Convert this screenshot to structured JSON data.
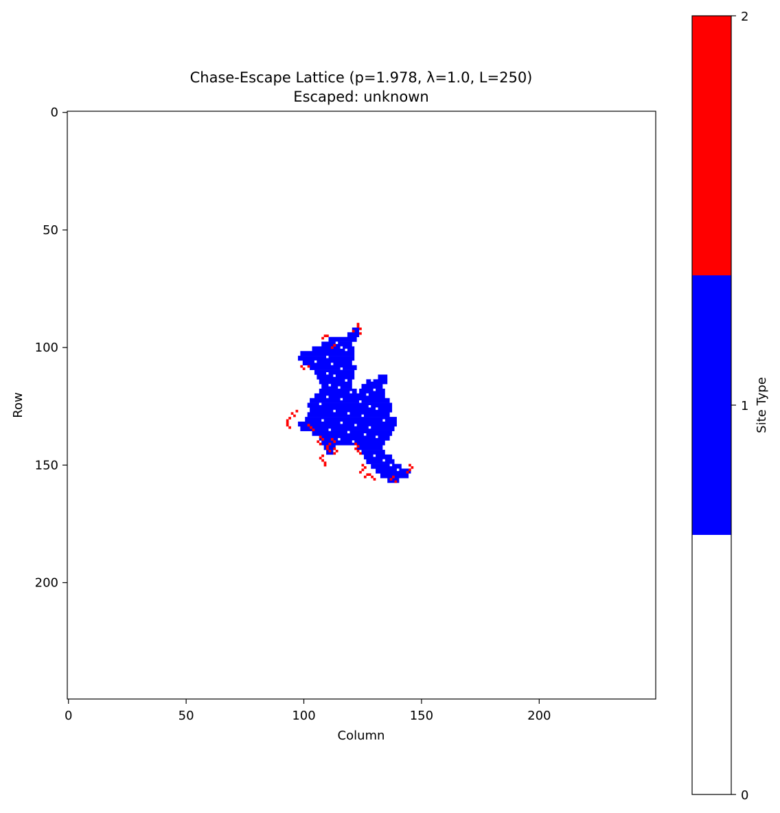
{
  "chart_data": {
    "type": "heatmap",
    "title": "Chase-Escape Lattice (p=1.978, λ=1.0, L=250)",
    "subtitle": "Escaped: unknown",
    "xlabel": "Column",
    "ylabel": "Row",
    "xlim": [
      0,
      250
    ],
    "ylim": [
      250,
      0
    ],
    "xticks": [
      0,
      50,
      100,
      150,
      200
    ],
    "yticks": [
      0,
      50,
      100,
      150,
      200
    ],
    "grid": false,
    "colorbar": {
      "label": "Site Type",
      "ticks": [
        0,
        1,
        2
      ],
      "range": [
        0,
        2
      ],
      "categories": [
        {
          "value": 0,
          "color": "#ffffff"
        },
        {
          "value": 1,
          "color": "#0000ff"
        },
        {
          "value": 2,
          "color": "#ff0000"
        }
      ]
    },
    "blue_cluster_rows": [
      {
        "row": 92,
        "cols": [
          [
            121,
            123
          ]
        ]
      },
      {
        "row": 94,
        "cols": [
          [
            119,
            123
          ]
        ]
      },
      {
        "row": 96,
        "cols": [
          [
            111,
            122
          ]
        ]
      },
      {
        "row": 98,
        "cols": [
          [
            108,
            120
          ]
        ]
      },
      {
        "row": 100,
        "cols": [
          [
            104,
            121
          ]
        ]
      },
      {
        "row": 102,
        "cols": [
          [
            99,
            121
          ]
        ]
      },
      {
        "row": 104,
        "cols": [
          [
            98,
            121
          ]
        ]
      },
      {
        "row": 106,
        "cols": [
          [
            100,
            120
          ]
        ]
      },
      {
        "row": 108,
        "cols": [
          [
            103,
            122
          ]
        ]
      },
      {
        "row": 110,
        "cols": [
          [
            105,
            121
          ]
        ]
      },
      {
        "row": 112,
        "cols": [
          [
            106,
            121
          ],
          [
            132,
            135
          ]
        ]
      },
      {
        "row": 114,
        "cols": [
          [
            107,
            120
          ],
          [
            127,
            135
          ]
        ]
      },
      {
        "row": 116,
        "cols": [
          [
            108,
            120
          ],
          [
            125,
            133
          ]
        ]
      },
      {
        "row": 118,
        "cols": [
          [
            107,
            122
          ],
          [
            124,
            134
          ]
        ]
      },
      {
        "row": 120,
        "cols": [
          [
            105,
            134
          ]
        ]
      },
      {
        "row": 122,
        "cols": [
          [
            103,
            136
          ]
        ]
      },
      {
        "row": 124,
        "cols": [
          [
            102,
            137
          ]
        ]
      },
      {
        "row": 126,
        "cols": [
          [
            103,
            137
          ]
        ]
      },
      {
        "row": 128,
        "cols": [
          [
            102,
            136
          ]
        ]
      },
      {
        "row": 130,
        "cols": [
          [
            101,
            139
          ]
        ]
      },
      {
        "row": 132,
        "cols": [
          [
            98,
            139
          ]
        ]
      },
      {
        "row": 134,
        "cols": [
          [
            99,
            138
          ]
        ]
      },
      {
        "row": 136,
        "cols": [
          [
            104,
            137
          ]
        ]
      },
      {
        "row": 138,
        "cols": [
          [
            107,
            136
          ]
        ]
      },
      {
        "row": 140,
        "cols": [
          [
            108,
            134
          ]
        ]
      },
      {
        "row": 142,
        "cols": [
          [
            109,
            113
          ],
          [
            123,
            133
          ]
        ]
      },
      {
        "row": 144,
        "cols": [
          [
            110,
            112
          ],
          [
            125,
            134
          ]
        ]
      },
      {
        "row": 146,
        "cols": [
          [
            126,
            137
          ]
        ]
      },
      {
        "row": 148,
        "cols": [
          [
            127,
            138
          ]
        ]
      },
      {
        "row": 150,
        "cols": [
          [
            129,
            141
          ]
        ]
      },
      {
        "row": 152,
        "cols": [
          [
            131,
            145
          ]
        ]
      },
      {
        "row": 154,
        "cols": [
          [
            133,
            144
          ]
        ]
      },
      {
        "row": 156,
        "cols": [
          [
            136,
            140
          ]
        ]
      }
    ],
    "red_sites": [
      [
        90,
        123
      ],
      [
        91,
        123
      ],
      [
        92,
        124
      ],
      [
        93,
        121
      ],
      [
        94,
        124
      ],
      [
        95,
        109
      ],
      [
        95,
        110
      ],
      [
        96,
        108
      ],
      [
        99,
        113
      ],
      [
        100,
        112
      ],
      [
        108,
        99
      ],
      [
        109,
        100
      ],
      [
        108,
        102
      ],
      [
        127,
        97
      ],
      [
        128,
        95
      ],
      [
        129,
        96
      ],
      [
        130,
        94
      ],
      [
        131,
        93
      ],
      [
        132,
        93
      ],
      [
        133,
        93
      ],
      [
        134,
        94
      ],
      [
        134,
        103
      ],
      [
        135,
        104
      ],
      [
        133,
        102
      ],
      [
        138,
        107
      ],
      [
        139,
        108
      ],
      [
        140,
        106
      ],
      [
        141,
        107
      ],
      [
        139,
        112
      ],
      [
        140,
        113
      ],
      [
        141,
        111
      ],
      [
        142,
        110
      ],
      [
        143,
        110
      ],
      [
        144,
        111
      ],
      [
        143,
        113
      ],
      [
        144,
        114
      ],
      [
        145,
        113
      ],
      [
        146,
        108
      ],
      [
        147,
        107
      ],
      [
        148,
        108
      ],
      [
        149,
        109
      ],
      [
        150,
        109
      ],
      [
        141,
        122
      ],
      [
        142,
        123
      ],
      [
        143,
        122
      ],
      [
        144,
        123
      ],
      [
        145,
        124
      ],
      [
        150,
        125
      ],
      [
        151,
        126
      ],
      [
        152,
        125
      ],
      [
        153,
        124
      ],
      [
        154,
        127
      ],
      [
        155,
        126
      ],
      [
        154,
        128
      ],
      [
        155,
        129
      ],
      [
        156,
        130
      ],
      [
        150,
        145
      ],
      [
        151,
        146
      ],
      [
        152,
        145
      ],
      [
        153,
        144
      ],
      [
        155,
        138
      ],
      [
        156,
        137
      ],
      [
        157,
        139
      ]
    ],
    "white_holes": [
      [
        98,
        114
      ],
      [
        100,
        116
      ],
      [
        101,
        118
      ],
      [
        104,
        110
      ],
      [
        106,
        105
      ],
      [
        107,
        112
      ],
      [
        109,
        116
      ],
      [
        111,
        110
      ],
      [
        112,
        113
      ],
      [
        114,
        118
      ],
      [
        116,
        111
      ],
      [
        117,
        115
      ],
      [
        119,
        120
      ],
      [
        121,
        110
      ],
      [
        122,
        116
      ],
      [
        123,
        124
      ],
      [
        124,
        107
      ],
      [
        125,
        128
      ],
      [
        126,
        131
      ],
      [
        127,
        113
      ],
      [
        128,
        119
      ],
      [
        129,
        125
      ],
      [
        131,
        108
      ],
      [
        131,
        134
      ],
      [
        132,
        116
      ],
      [
        133,
        122
      ],
      [
        134,
        128
      ],
      [
        135,
        111
      ],
      [
        136,
        119
      ],
      [
        137,
        126
      ],
      [
        138,
        131
      ],
      [
        139,
        115
      ],
      [
        140,
        121
      ],
      [
        146,
        130
      ],
      [
        148,
        134
      ],
      [
        150,
        137
      ],
      [
        152,
        140
      ],
      [
        120,
        127
      ],
      [
        118,
        130
      ],
      [
        114,
        129
      ]
    ]
  }
}
